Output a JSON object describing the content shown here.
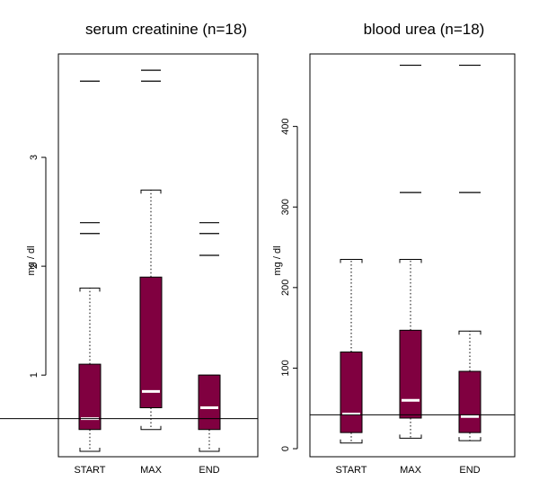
{
  "colors": {
    "box_fill": "#800040",
    "box_stroke": "#000000",
    "median": "#ffffff"
  },
  "chart_data": [
    {
      "type": "box",
      "title": "serum creatinine (n=18)",
      "ylabel": "mg / dl",
      "ylim": [
        0.25,
        3.95
      ],
      "yticks": [
        1,
        2,
        3
      ],
      "categories": [
        "START",
        "MAX",
        "END"
      ],
      "reference_line": 0.6,
      "boxes": [
        {
          "category": "START",
          "whisker_low": 0.3,
          "q1": 0.5,
          "median": 0.6,
          "q3": 1.1,
          "whisker_high": 1.8,
          "outliers": [
            2.3,
            2.4,
            3.7
          ]
        },
        {
          "category": "MAX",
          "whisker_low": 0.5,
          "q1": 0.7,
          "median": 0.85,
          "q3": 1.9,
          "whisker_high": 2.7,
          "outliers": [
            3.7,
            3.8
          ]
        },
        {
          "category": "END",
          "whisker_low": 0.3,
          "q1": 0.5,
          "median": 0.7,
          "q3": 1.0,
          "whisker_high": 1.0,
          "outliers": [
            2.1,
            2.3,
            2.4
          ]
        }
      ]
    },
    {
      "type": "box",
      "title": "blood urea (n=18)",
      "ylabel": "mg / dl",
      "ylim": [
        -10,
        490
      ],
      "yticks": [
        0,
        100,
        200,
        300,
        400
      ],
      "categories": [
        "START",
        "MAX",
        "END"
      ],
      "reference_line": 42,
      "boxes": [
        {
          "category": "START",
          "whisker_low": 7,
          "q1": 20,
          "median": 43,
          "q3": 120,
          "whisker_high": 235,
          "outliers": []
        },
        {
          "category": "MAX",
          "whisker_low": 13,
          "q1": 38,
          "median": 60,
          "q3": 147,
          "whisker_high": 235,
          "outliers": [
            318,
            476
          ]
        },
        {
          "category": "END",
          "whisker_low": 10,
          "q1": 20,
          "median": 40,
          "q3": 96,
          "whisker_high": 146,
          "outliers": [
            318,
            476
          ]
        }
      ]
    }
  ]
}
